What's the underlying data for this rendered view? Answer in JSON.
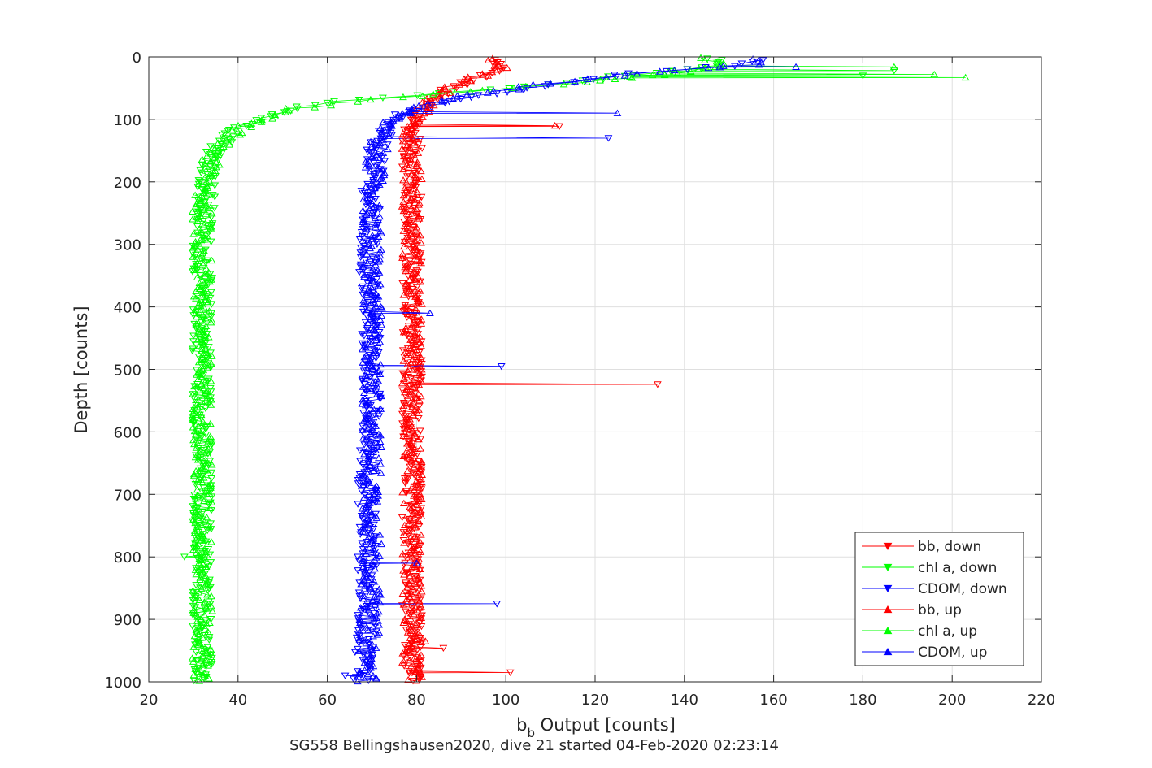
{
  "chart_data": {
    "type": "line",
    "title": "",
    "caption": "SG558 Bellingshausen2020, dive 21 started 04-Feb-2020 02:23:14",
    "xlabel": {
      "main": "b",
      "subscript": "b",
      "rest": " Output [counts]"
    },
    "ylabel": "Depth [counts]",
    "xlim": [
      20,
      220
    ],
    "ylim": [
      0,
      1000
    ],
    "y_reversed": true,
    "grid": true,
    "legend_position": "bottom-right",
    "x_ticks": [
      "20",
      "40",
      "60",
      "80",
      "100",
      "120",
      "140",
      "160",
      "180",
      "200",
      "220"
    ],
    "y_ticks": [
      "0",
      "100",
      "200",
      "300",
      "400",
      "500",
      "600",
      "700",
      "800",
      "900",
      "1000"
    ],
    "colors": {
      "bb": "#ff0000",
      "chl": "#00ff00",
      "cdom": "#0000ff"
    },
    "series": [
      {
        "name": "bb, down",
        "color": "#ff0000",
        "marker": "triangle-down",
        "profile": [
          [
            5,
            97
          ],
          [
            15,
            99
          ],
          [
            25,
            97
          ],
          [
            40,
            91
          ],
          [
            55,
            86
          ],
          [
            70,
            83
          ],
          [
            90,
            80
          ],
          [
            120,
            79
          ],
          [
            200,
            79
          ],
          [
            400,
            79
          ],
          [
            600,
            79
          ],
          [
            800,
            79
          ],
          [
            1000,
            79
          ]
        ],
        "outliers": [
          [
            111,
            112
          ],
          [
            524,
            134
          ],
          [
            985,
            101
          ],
          [
            946,
            86
          ]
        ]
      },
      {
        "name": "chl a, down",
        "color": "#00ff00",
        "marker": "triangle-down",
        "profile": [
          [
            2,
            145
          ],
          [
            10,
            150
          ],
          [
            20,
            140
          ],
          [
            35,
            120
          ],
          [
            50,
            100
          ],
          [
            62,
            80
          ],
          [
            70,
            64
          ],
          [
            80,
            55
          ],
          [
            95,
            47
          ],
          [
            115,
            40
          ],
          [
            150,
            35
          ],
          [
            200,
            33
          ],
          [
            300,
            32
          ],
          [
            500,
            32
          ],
          [
            700,
            32
          ],
          [
            900,
            32
          ],
          [
            1000,
            32
          ]
        ],
        "outliers": [
          [
            22,
            187
          ],
          [
            30,
            180
          ],
          [
            800,
            28
          ],
          [
            455,
            30
          ]
        ]
      },
      {
        "name": "CDOM, down",
        "color": "#0000ff",
        "marker": "triangle-down",
        "profile": [
          [
            5,
            158
          ],
          [
            15,
            150
          ],
          [
            25,
            130
          ],
          [
            40,
            115
          ],
          [
            55,
            100
          ],
          [
            70,
            87
          ],
          [
            90,
            77
          ],
          [
            110,
            73
          ],
          [
            150,
            71
          ],
          [
            200,
            70
          ],
          [
            300,
            69
          ],
          [
            500,
            70
          ],
          [
            700,
            69
          ],
          [
            900,
            69
          ],
          [
            1000,
            68
          ]
        ],
        "outliers": [
          [
            130,
            123
          ],
          [
            495,
            99
          ],
          [
            875,
            98
          ],
          [
            990,
            64
          ]
        ]
      },
      {
        "name": "bb, up",
        "color": "#ff0000",
        "marker": "triangle-up",
        "profile": [
          [
            3,
            96
          ],
          [
            10,
            98
          ],
          [
            22,
            99
          ],
          [
            35,
            92
          ],
          [
            50,
            87
          ],
          [
            65,
            84
          ],
          [
            85,
            81
          ],
          [
            120,
            79
          ],
          [
            200,
            79
          ],
          [
            400,
            79
          ],
          [
            600,
            79
          ],
          [
            800,
            79
          ],
          [
            1000,
            79
          ]
        ],
        "outliers": [
          [
            110,
            111
          ],
          [
            935,
            82
          ]
        ]
      },
      {
        "name": "chl a, up",
        "color": "#00ff00",
        "marker": "triangle-up",
        "profile": [
          [
            2,
            143
          ],
          [
            12,
            150
          ],
          [
            25,
            140
          ],
          [
            40,
            118
          ],
          [
            52,
            98
          ],
          [
            63,
            78
          ],
          [
            72,
            65
          ],
          [
            82,
            53
          ],
          [
            100,
            45
          ],
          [
            120,
            39
          ],
          [
            160,
            34
          ],
          [
            220,
            32
          ],
          [
            400,
            32
          ],
          [
            600,
            32
          ],
          [
            800,
            32
          ],
          [
            1000,
            32
          ]
        ],
        "outliers": [
          [
            33,
            203
          ],
          [
            28,
            196
          ],
          [
            16,
            187
          ]
        ]
      },
      {
        "name": "CDOM, up",
        "color": "#0000ff",
        "marker": "triangle-up",
        "profile": [
          [
            3,
            156
          ],
          [
            12,
            155
          ],
          [
            25,
            132
          ],
          [
            40,
            113
          ],
          [
            55,
            97
          ],
          [
            70,
            85
          ],
          [
            92,
            76
          ],
          [
            115,
            72
          ],
          [
            160,
            71
          ],
          [
            220,
            70
          ],
          [
            400,
            70
          ],
          [
            600,
            70
          ],
          [
            800,
            70
          ],
          [
            1000,
            69
          ]
        ],
        "outliers": [
          [
            90,
            125
          ],
          [
            410,
            83
          ],
          [
            810,
            80
          ],
          [
            16,
            165
          ]
        ]
      }
    ]
  }
}
